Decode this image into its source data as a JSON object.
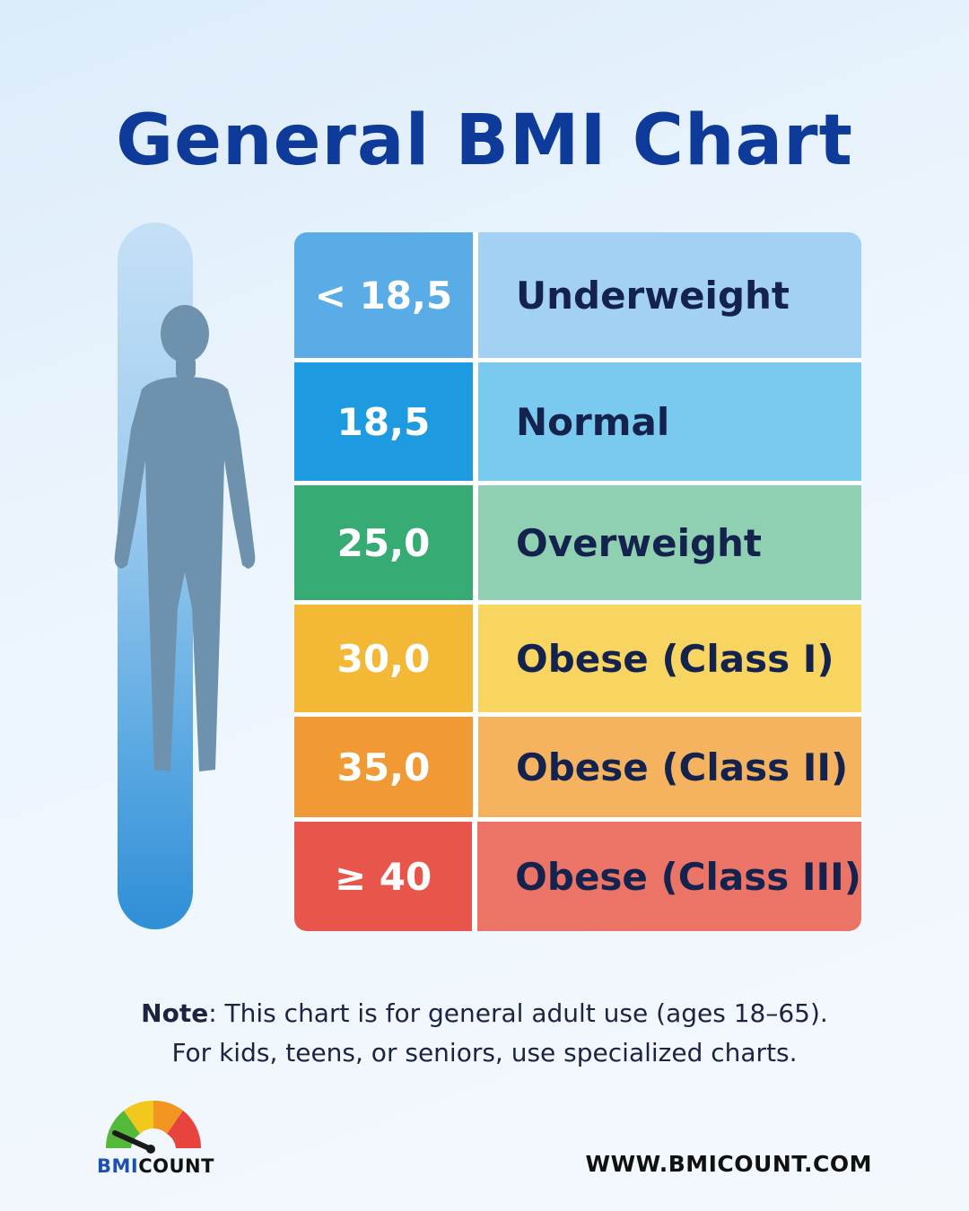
{
  "title": "General BMI Chart",
  "rows": [
    {
      "value": "< 18,5",
      "label": "Underweight",
      "value_color": "#5aace6",
      "label_color": "#a3d1f4"
    },
    {
      "value": "18,5",
      "label": "Normal",
      "value_color": "#1e9be0",
      "label_color": "#79caee"
    },
    {
      "value": "25,0",
      "label": "Overweight",
      "value_color": "#36ab74",
      "label_color": "#8fd0b2"
    },
    {
      "value": "30,0",
      "label": "Obese (Class I)",
      "value_color": "#f3b936",
      "label_color": "#f8d561"
    },
    {
      "value": "35,0",
      "label": "Obese (Class II)",
      "value_color": "#f19a35",
      "label_color": "#f5b35f"
    },
    {
      "value": "≥ 40",
      "label": "Obese (Class III)",
      "value_color": "#e8554a",
      "label_color": "#ec7466"
    }
  ],
  "note": {
    "bold": "Note",
    "line1": ": This chart is for general adult use (ages 18–65).",
    "line2": "For kids, teens, or seniors, use specialized charts."
  },
  "logo": {
    "part1": "BMI",
    "part1_color": "#1d4fb0",
    "part2": "COUNT",
    "part2_color": "#111111",
    "icon": "gauge-icon"
  },
  "url": "WWW.BMICOUNT.COM",
  "colors": {
    "title": "#0e3a9a",
    "figure": "#6e91ad"
  }
}
